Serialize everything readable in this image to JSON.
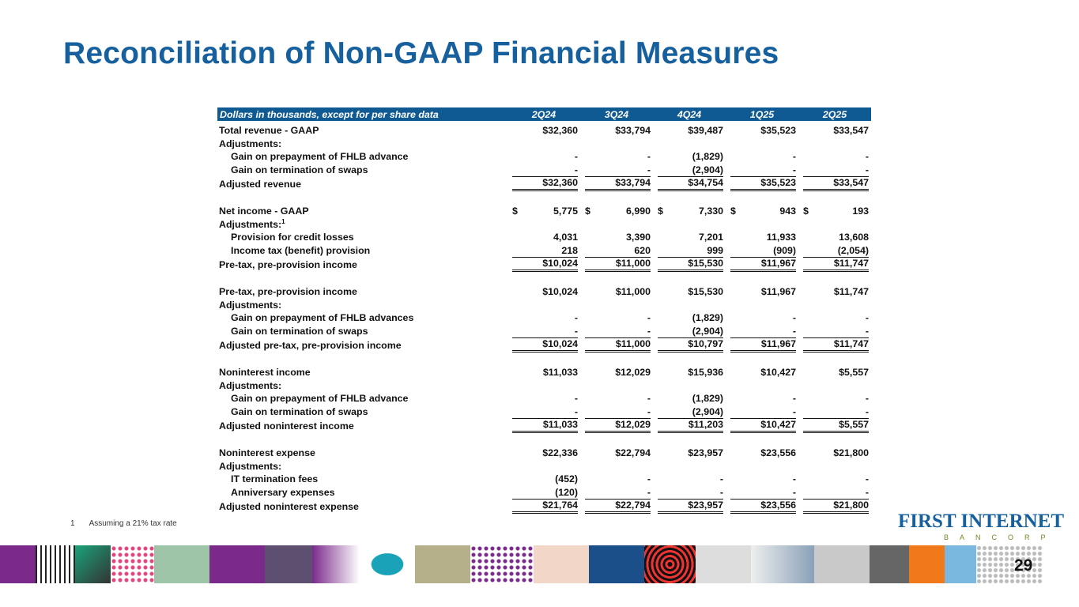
{
  "title": "Reconciliation of Non-GAAP Financial Measures",
  "table": {
    "header_label": "Dollars in thousands, except for per share data",
    "columns": [
      "2Q24",
      "3Q24",
      "4Q24",
      "1Q25",
      "2Q25"
    ],
    "rows": [
      {
        "label": "Total revenue - GAAP",
        "indent": false,
        "type": "first",
        "values": [
          "$32,360",
          "$33,794",
          "$39,487",
          "$35,523",
          "$33,547"
        ]
      },
      {
        "label": "Adjustments:",
        "indent": false,
        "type": "normal",
        "values": [
          "",
          "",
          "",
          "",
          ""
        ]
      },
      {
        "label": "Gain on prepayment of FHLB advance",
        "indent": true,
        "type": "normal",
        "values": [
          "-",
          "-",
          "(1,829)",
          "-",
          "-"
        ]
      },
      {
        "label": "Gain on termination of swaps",
        "indent": true,
        "type": "normal",
        "values": [
          "-",
          "-",
          "(2,904)",
          "-",
          "-"
        ]
      },
      {
        "label": "Adjusted revenue",
        "indent": false,
        "type": "sub",
        "values": [
          "$32,360",
          "$33,794",
          "$34,754",
          "$35,523",
          "$33,547"
        ]
      },
      {
        "label": "",
        "indent": false,
        "type": "blank",
        "values": [
          "",
          "",
          "",
          "",
          ""
        ]
      },
      {
        "label": "Net income - GAAP",
        "indent": false,
        "type": "normal",
        "currency": "$",
        "values": [
          "5,775",
          "6,990",
          "7,330",
          "943",
          "193"
        ]
      },
      {
        "label": "Adjustments:",
        "sup": "1",
        "indent": false,
        "type": "normal",
        "values": [
          "",
          "",
          "",
          "",
          ""
        ]
      },
      {
        "label": "Provision for credit losses",
        "indent": true,
        "type": "normal",
        "values": [
          "4,031",
          "3,390",
          "7,201",
          "11,933",
          "13,608"
        ]
      },
      {
        "label": "Income tax (benefit) provision",
        "indent": true,
        "type": "normal",
        "values": [
          "218",
          "620",
          "999",
          "(909)",
          "(2,054)"
        ]
      },
      {
        "label": "Pre-tax, pre-provision income",
        "indent": false,
        "type": "sub",
        "values": [
          "$10,024",
          "$11,000",
          "$15,530",
          "$11,967",
          "$11,747"
        ]
      },
      {
        "label": "",
        "indent": false,
        "type": "blank",
        "values": [
          "",
          "",
          "",
          "",
          ""
        ]
      },
      {
        "label": "Pre-tax, pre-provision income",
        "indent": false,
        "type": "normal",
        "values": [
          "$10,024",
          "$11,000",
          "$15,530",
          "$11,967",
          "$11,747"
        ]
      },
      {
        "label": "Adjustments:",
        "indent": false,
        "type": "normal",
        "values": [
          "",
          "",
          "",
          "",
          ""
        ]
      },
      {
        "label": "Gain on prepayment of FHLB advances",
        "indent": true,
        "type": "normal",
        "values": [
          "-",
          "-",
          "(1,829)",
          "-",
          "-"
        ]
      },
      {
        "label": "Gain on termination of swaps",
        "indent": true,
        "type": "normal",
        "values": [
          "-",
          "-",
          "(2,904)",
          "-",
          "-"
        ]
      },
      {
        "label": "Adjusted pre-tax, pre-provision income",
        "indent": false,
        "type": "sub",
        "values": [
          "$10,024",
          "$11,000",
          "$10,797",
          "$11,967",
          "$11,747"
        ]
      },
      {
        "label": "",
        "indent": false,
        "type": "blank",
        "values": [
          "",
          "",
          "",
          "",
          ""
        ]
      },
      {
        "label": "Noninterest income",
        "indent": false,
        "type": "normal",
        "values": [
          "$11,033",
          "$12,029",
          "$15,936",
          "$10,427",
          "$5,557"
        ]
      },
      {
        "label": "Adjustments:",
        "indent": false,
        "type": "normal",
        "values": [
          "",
          "",
          "",
          "",
          ""
        ]
      },
      {
        "label": "Gain on prepayment of FHLB advance",
        "indent": true,
        "type": "normal",
        "values": [
          "-",
          "-",
          "(1,829)",
          "-",
          "-"
        ]
      },
      {
        "label": "Gain on termination of swaps",
        "indent": true,
        "type": "normal",
        "values": [
          "-",
          "-",
          "(2,904)",
          "-",
          "-"
        ]
      },
      {
        "label": "Adjusted noninterest income",
        "indent": false,
        "type": "sub",
        "values": [
          "$11,033",
          "$12,029",
          "$11,203",
          "$10,427",
          "$5,557"
        ]
      },
      {
        "label": "",
        "indent": false,
        "type": "blank",
        "values": [
          "",
          "",
          "",
          "",
          ""
        ]
      },
      {
        "label": "Noninterest expense",
        "indent": false,
        "type": "normal",
        "values": [
          "$22,336",
          "$22,794",
          "$23,957",
          "$23,556",
          "$21,800"
        ]
      },
      {
        "label": "Adjustments:",
        "indent": false,
        "type": "normal",
        "values": [
          "",
          "",
          "",
          "",
          ""
        ]
      },
      {
        "label": "IT termination fees",
        "indent": true,
        "type": "normal",
        "values": [
          "(452)",
          "-",
          "-",
          "-",
          "-"
        ]
      },
      {
        "label": "Anniversary expenses",
        "indent": true,
        "type": "normal",
        "values": [
          "(120)",
          "-",
          "-",
          "-",
          "-"
        ]
      },
      {
        "label": "Adjusted noninterest expense",
        "indent": false,
        "type": "sub",
        "values": [
          "$21,764",
          "$22,794",
          "$23,957",
          "$23,556",
          "$21,800"
        ]
      }
    ]
  },
  "footnote": {
    "number": "1",
    "text": "Assuming a 21% tax rate"
  },
  "logo": {
    "main": "FIRST INTERNET",
    "sub": "BANCORP"
  },
  "page_number": "29",
  "colors": {
    "title": "#17609e",
    "header_bg": "#0f5a93"
  }
}
